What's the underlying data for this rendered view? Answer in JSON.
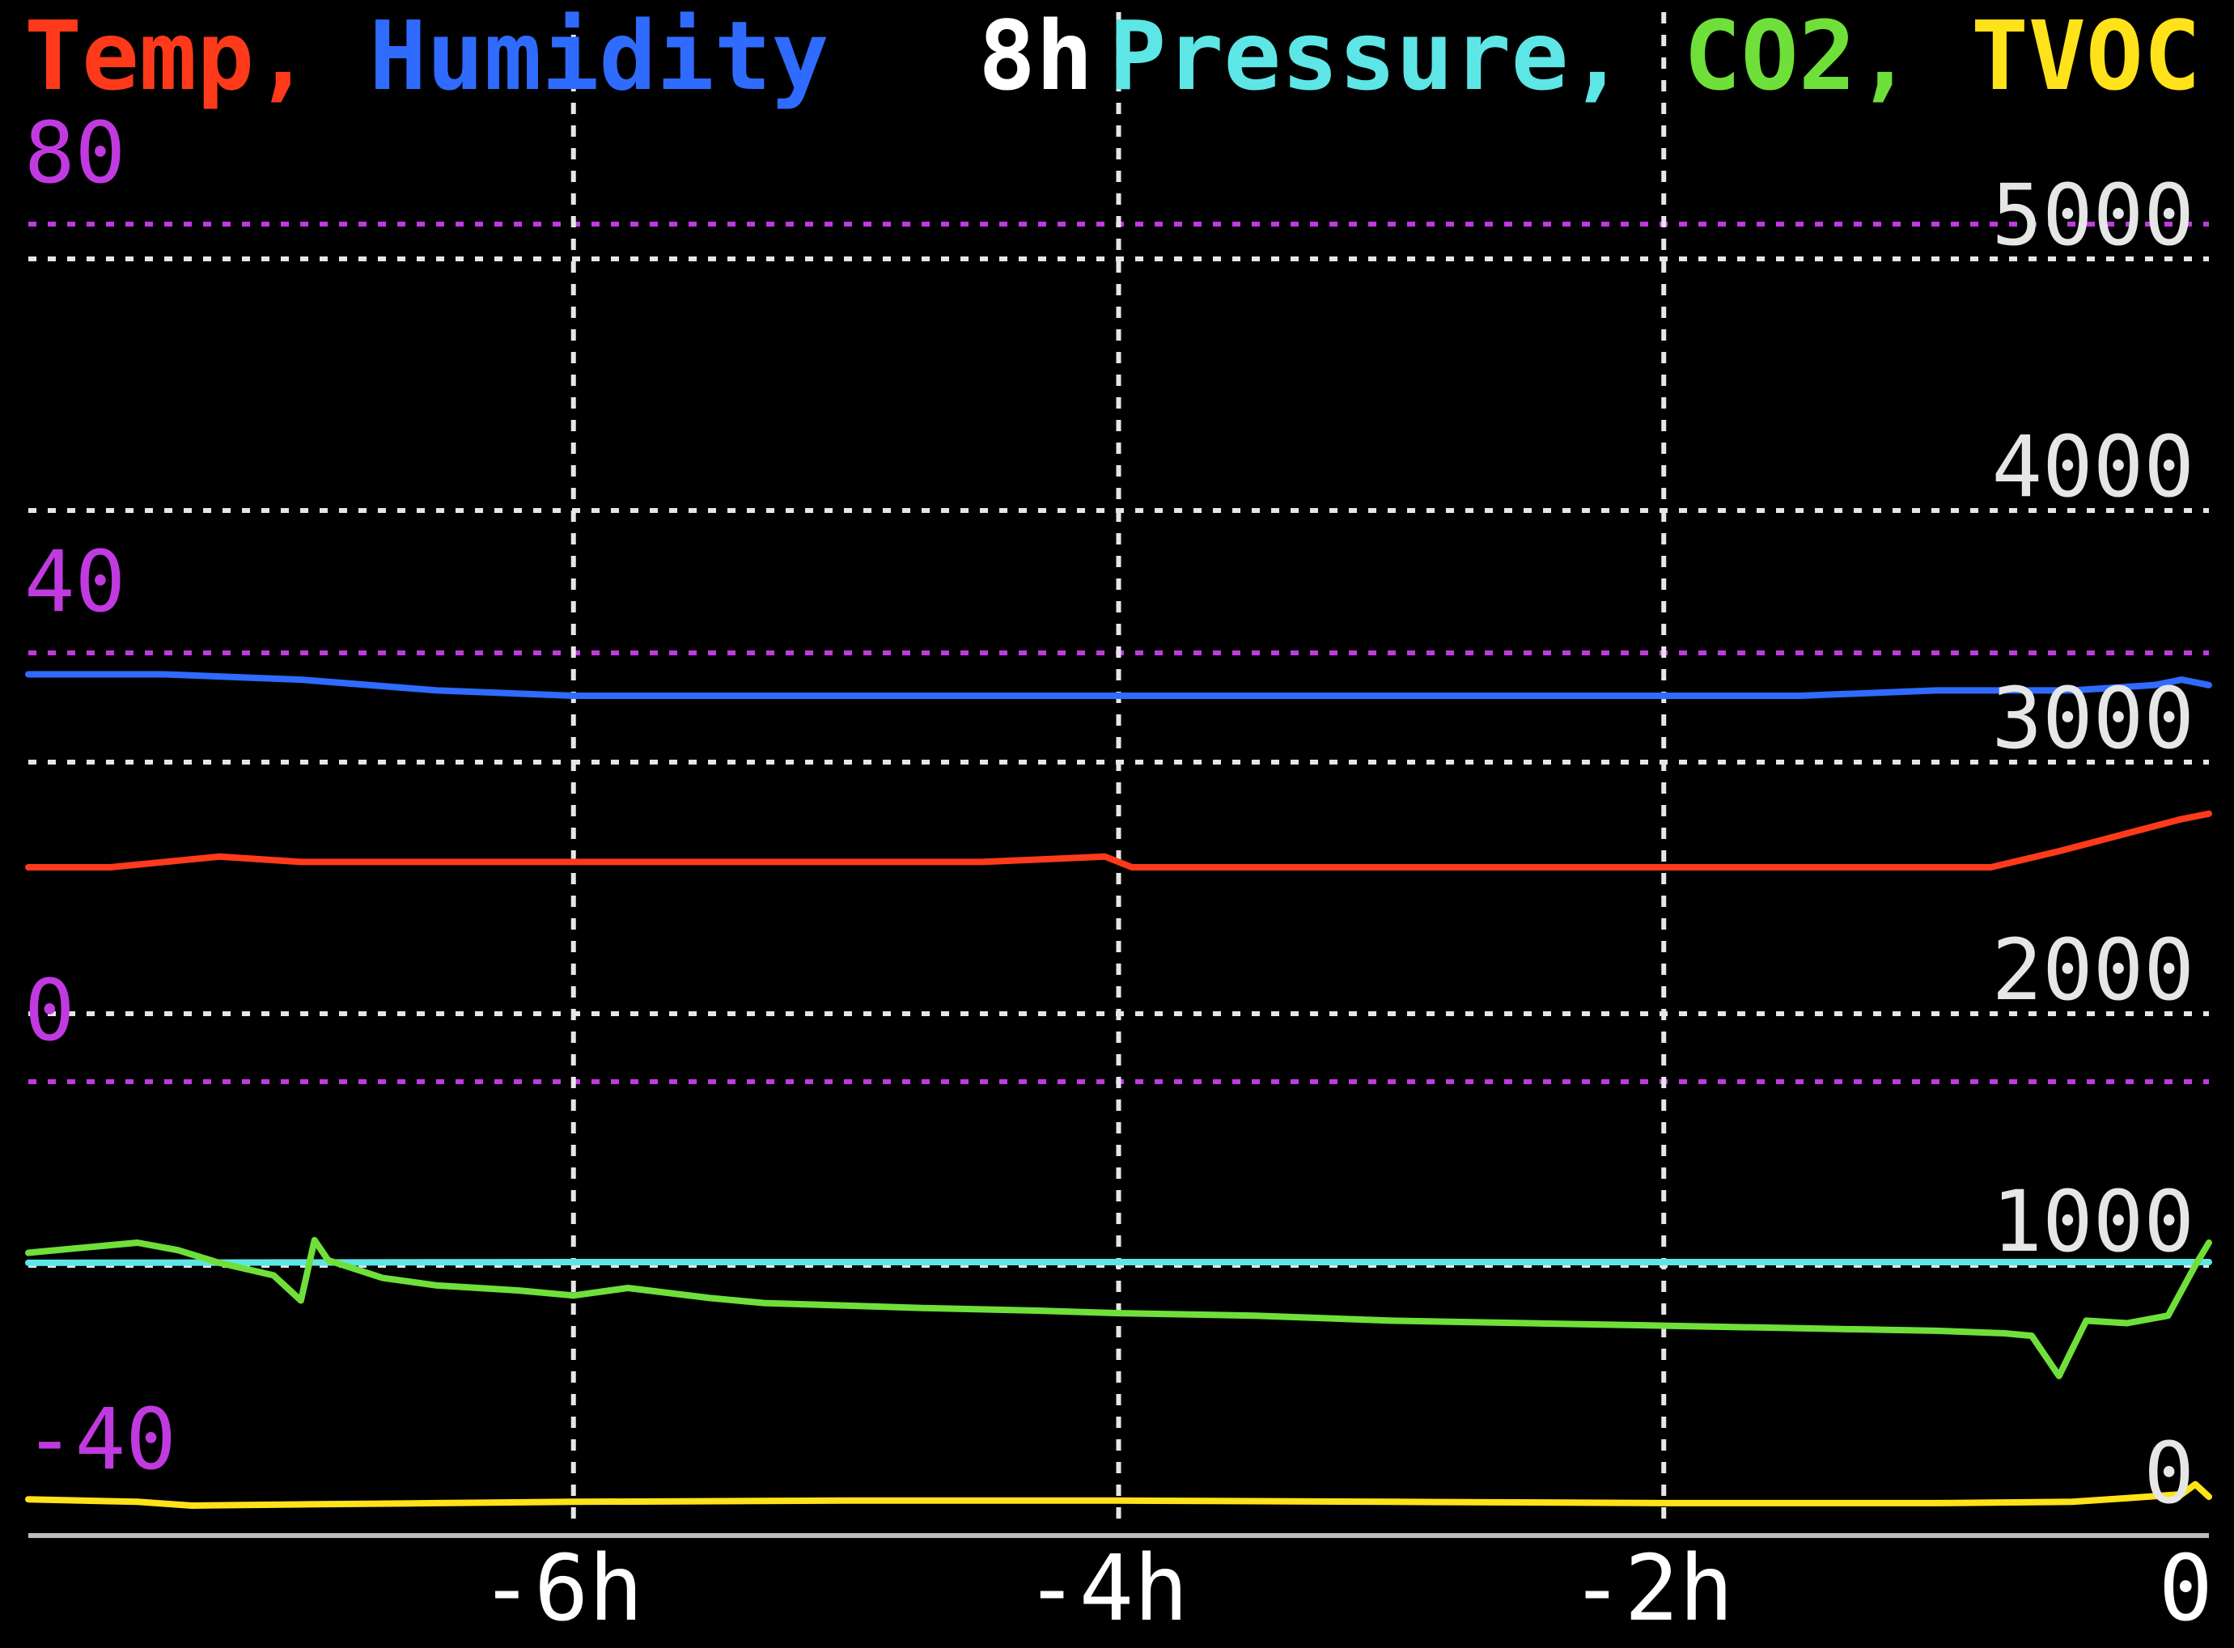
{
  "header": {
    "left_part1": "Temp, ",
    "left_part2": "Humidity",
    "center": "8h",
    "right_part1": "Pressure, ",
    "right_part2": "CO2, ",
    "right_part3": "TVOC"
  },
  "colors": {
    "temp": "#ff3a1a",
    "humidity": "#2f6bff",
    "pressure": "#5ee6e6",
    "co2": "#6fe03a",
    "tvoc": "#ffe21a",
    "left_axis": "#c03ae0",
    "right_axis": "#e6e6e6",
    "background": "#000000"
  },
  "chart_data": {
    "type": "line",
    "x_unit": "hours",
    "xlim": [
      -8,
      0
    ],
    "x_ticks": [
      {
        "value": -6,
        "label": "-6h"
      },
      {
        "value": -4,
        "label": "-4h"
      },
      {
        "value": -2,
        "label": "-2h"
      },
      {
        "value": 0,
        "label": "0"
      }
    ],
    "left_axis": {
      "ylim": [
        -40,
        80
      ],
      "ticks": [
        {
          "value": 80,
          "label": "80"
        },
        {
          "value": 40,
          "label": "40"
        },
        {
          "value": 0,
          "label": "0"
        },
        {
          "value": -40,
          "label": "-40"
        }
      ]
    },
    "right_axis": {
      "ylim": [
        0,
        5000
      ],
      "ticks": [
        {
          "value": 5000,
          "label": "5000"
        },
        {
          "value": 4000,
          "label": "4000"
        },
        {
          "value": 3000,
          "label": "3000"
        },
        {
          "value": 2000,
          "label": "2000"
        },
        {
          "value": 1000,
          "label": "1000"
        },
        {
          "value": 0,
          "label": "0"
        }
      ]
    },
    "series": [
      {
        "name": "Temp",
        "axis": "left",
        "x": [
          -8,
          -7.7,
          -7.3,
          -7,
          -6.5,
          -6,
          -5.5,
          -5,
          -4.5,
          -4.05,
          -3.95,
          -3.5,
          -3,
          -2.5,
          -2,
          -1.5,
          -0.8,
          -0.55,
          -0.4,
          -0.25,
          -0.1,
          0
        ],
        "values": [
          20,
          20,
          21,
          20.5,
          20.5,
          20.5,
          20.5,
          20.5,
          20.5,
          21,
          20,
          20,
          20,
          20,
          20,
          20,
          20,
          21.5,
          22.5,
          23.5,
          24.5,
          25
        ]
      },
      {
        "name": "Humidity",
        "axis": "left",
        "x": [
          -8,
          -7.5,
          -7,
          -6.5,
          -6,
          -5.5,
          -5,
          -4.5,
          -4,
          -3.5,
          -3,
          -2.5,
          -2,
          -1.5,
          -1,
          -0.5,
          -0.2,
          -0.1,
          0
        ],
        "values": [
          38,
          38,
          37.5,
          36.5,
          36,
          36,
          36,
          36,
          36,
          36,
          36,
          36,
          36,
          36,
          36.5,
          36.5,
          37,
          37.5,
          37
        ]
      },
      {
        "name": "Pressure",
        "axis": "right",
        "x": [
          -8,
          -6,
          -4,
          -2,
          -1,
          0
        ],
        "values": [
          1010,
          1013,
          1013,
          1013,
          1013,
          1013
        ]
      },
      {
        "name": "CO2",
        "axis": "right",
        "x": [
          -8,
          -7.8,
          -7.6,
          -7.45,
          -7.3,
          -7.1,
          -7.0,
          -6.95,
          -6.9,
          -6.7,
          -6.5,
          -6.2,
          -6.0,
          -5.8,
          -5.5,
          -5.3,
          -5.0,
          -4.7,
          -4.3,
          -4.0,
          -3.5,
          -3.0,
          -2.5,
          -2.0,
          -1.5,
          -1.0,
          -0.75,
          -0.65,
          -0.55,
          -0.45,
          -0.3,
          -0.15,
          -0.05,
          0
        ],
        "values": [
          1050,
          1070,
          1090,
          1060,
          1010,
          960,
          860,
          1100,
          1020,
          950,
          920,
          900,
          880,
          910,
          870,
          850,
          840,
          830,
          820,
          810,
          800,
          780,
          770,
          760,
          750,
          740,
          730,
          720,
          560,
          780,
          770,
          800,
          1000,
          1090
        ]
      },
      {
        "name": "TVOC",
        "axis": "right",
        "x": [
          -8,
          -7.6,
          -7.4,
          -7.0,
          -6.5,
          -6.0,
          -5.0,
          -4.0,
          -3.0,
          -2.0,
          -1.0,
          -0.5,
          -0.3,
          -0.1,
          -0.05,
          0
        ],
        "values": [
          70,
          60,
          45,
          50,
          55,
          60,
          65,
          65,
          60,
          55,
          55,
          60,
          75,
          90,
          130,
          80
        ]
      }
    ],
    "grid": true
  }
}
